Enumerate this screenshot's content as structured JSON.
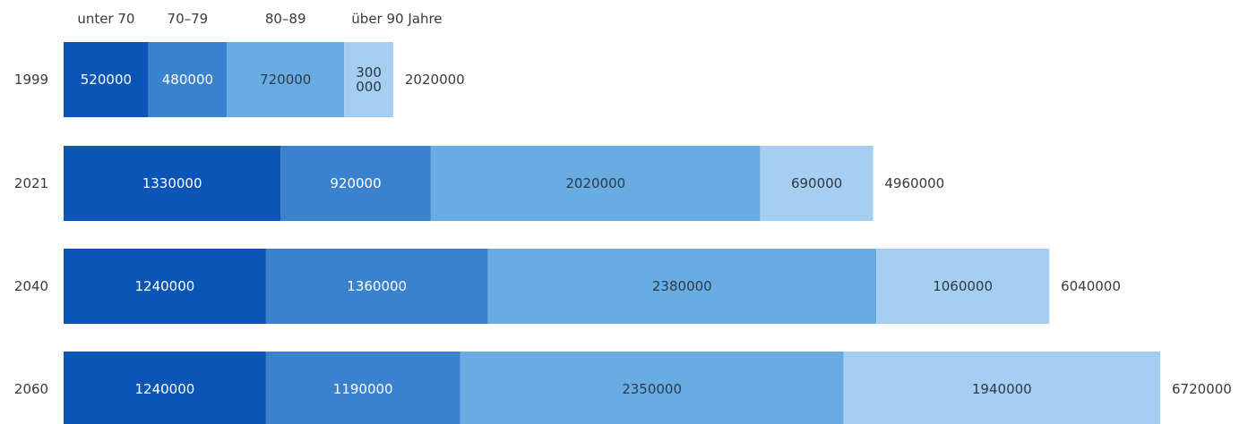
{
  "chart_data": {
    "type": "bar",
    "orientation": "horizontal",
    "stacked": true,
    "title": "",
    "xlabel": "",
    "ylabel": "",
    "grid": false,
    "legend_position": "top",
    "categories": [
      "1999",
      "2021",
      "2040",
      "2060"
    ],
    "series": [
      {
        "name": "unter 70",
        "color": "#0a55b5",
        "text_color": "#ffffff",
        "values": [
          520000,
          1330000,
          1240000,
          1240000
        ],
        "labels": [
          "520000",
          "1330000",
          "1240000",
          "1240000"
        ]
      },
      {
        "name": "70–79",
        "color": "#3a82cd",
        "text_color": "#ffffff",
        "values": [
          480000,
          920000,
          1360000,
          1190000
        ],
        "labels": [
          "480000",
          "920000",
          "1360000",
          "1190000"
        ]
      },
      {
        "name": "80–89",
        "color": "#69ace2",
        "text_color": "#2a3a4a",
        "values": [
          720000,
          2020000,
          2380000,
          2350000
        ],
        "labels": [
          "720000",
          "2020000",
          "2380000",
          "2350000"
        ]
      },
      {
        "name": "über 90 Jahre",
        "color": "#a6cef0",
        "text_color": "#2a3a4a",
        "values": [
          300000,
          690000,
          1060000,
          1940000
        ],
        "labels": [
          "300\n000",
          "690000",
          "1060000",
          "1940000"
        ]
      }
    ],
    "totals": [
      2020000,
      4960000,
      6040000,
      6720000
    ],
    "total_labels": [
      "2020000",
      "4960000",
      "6040000",
      "6720000"
    ]
  }
}
